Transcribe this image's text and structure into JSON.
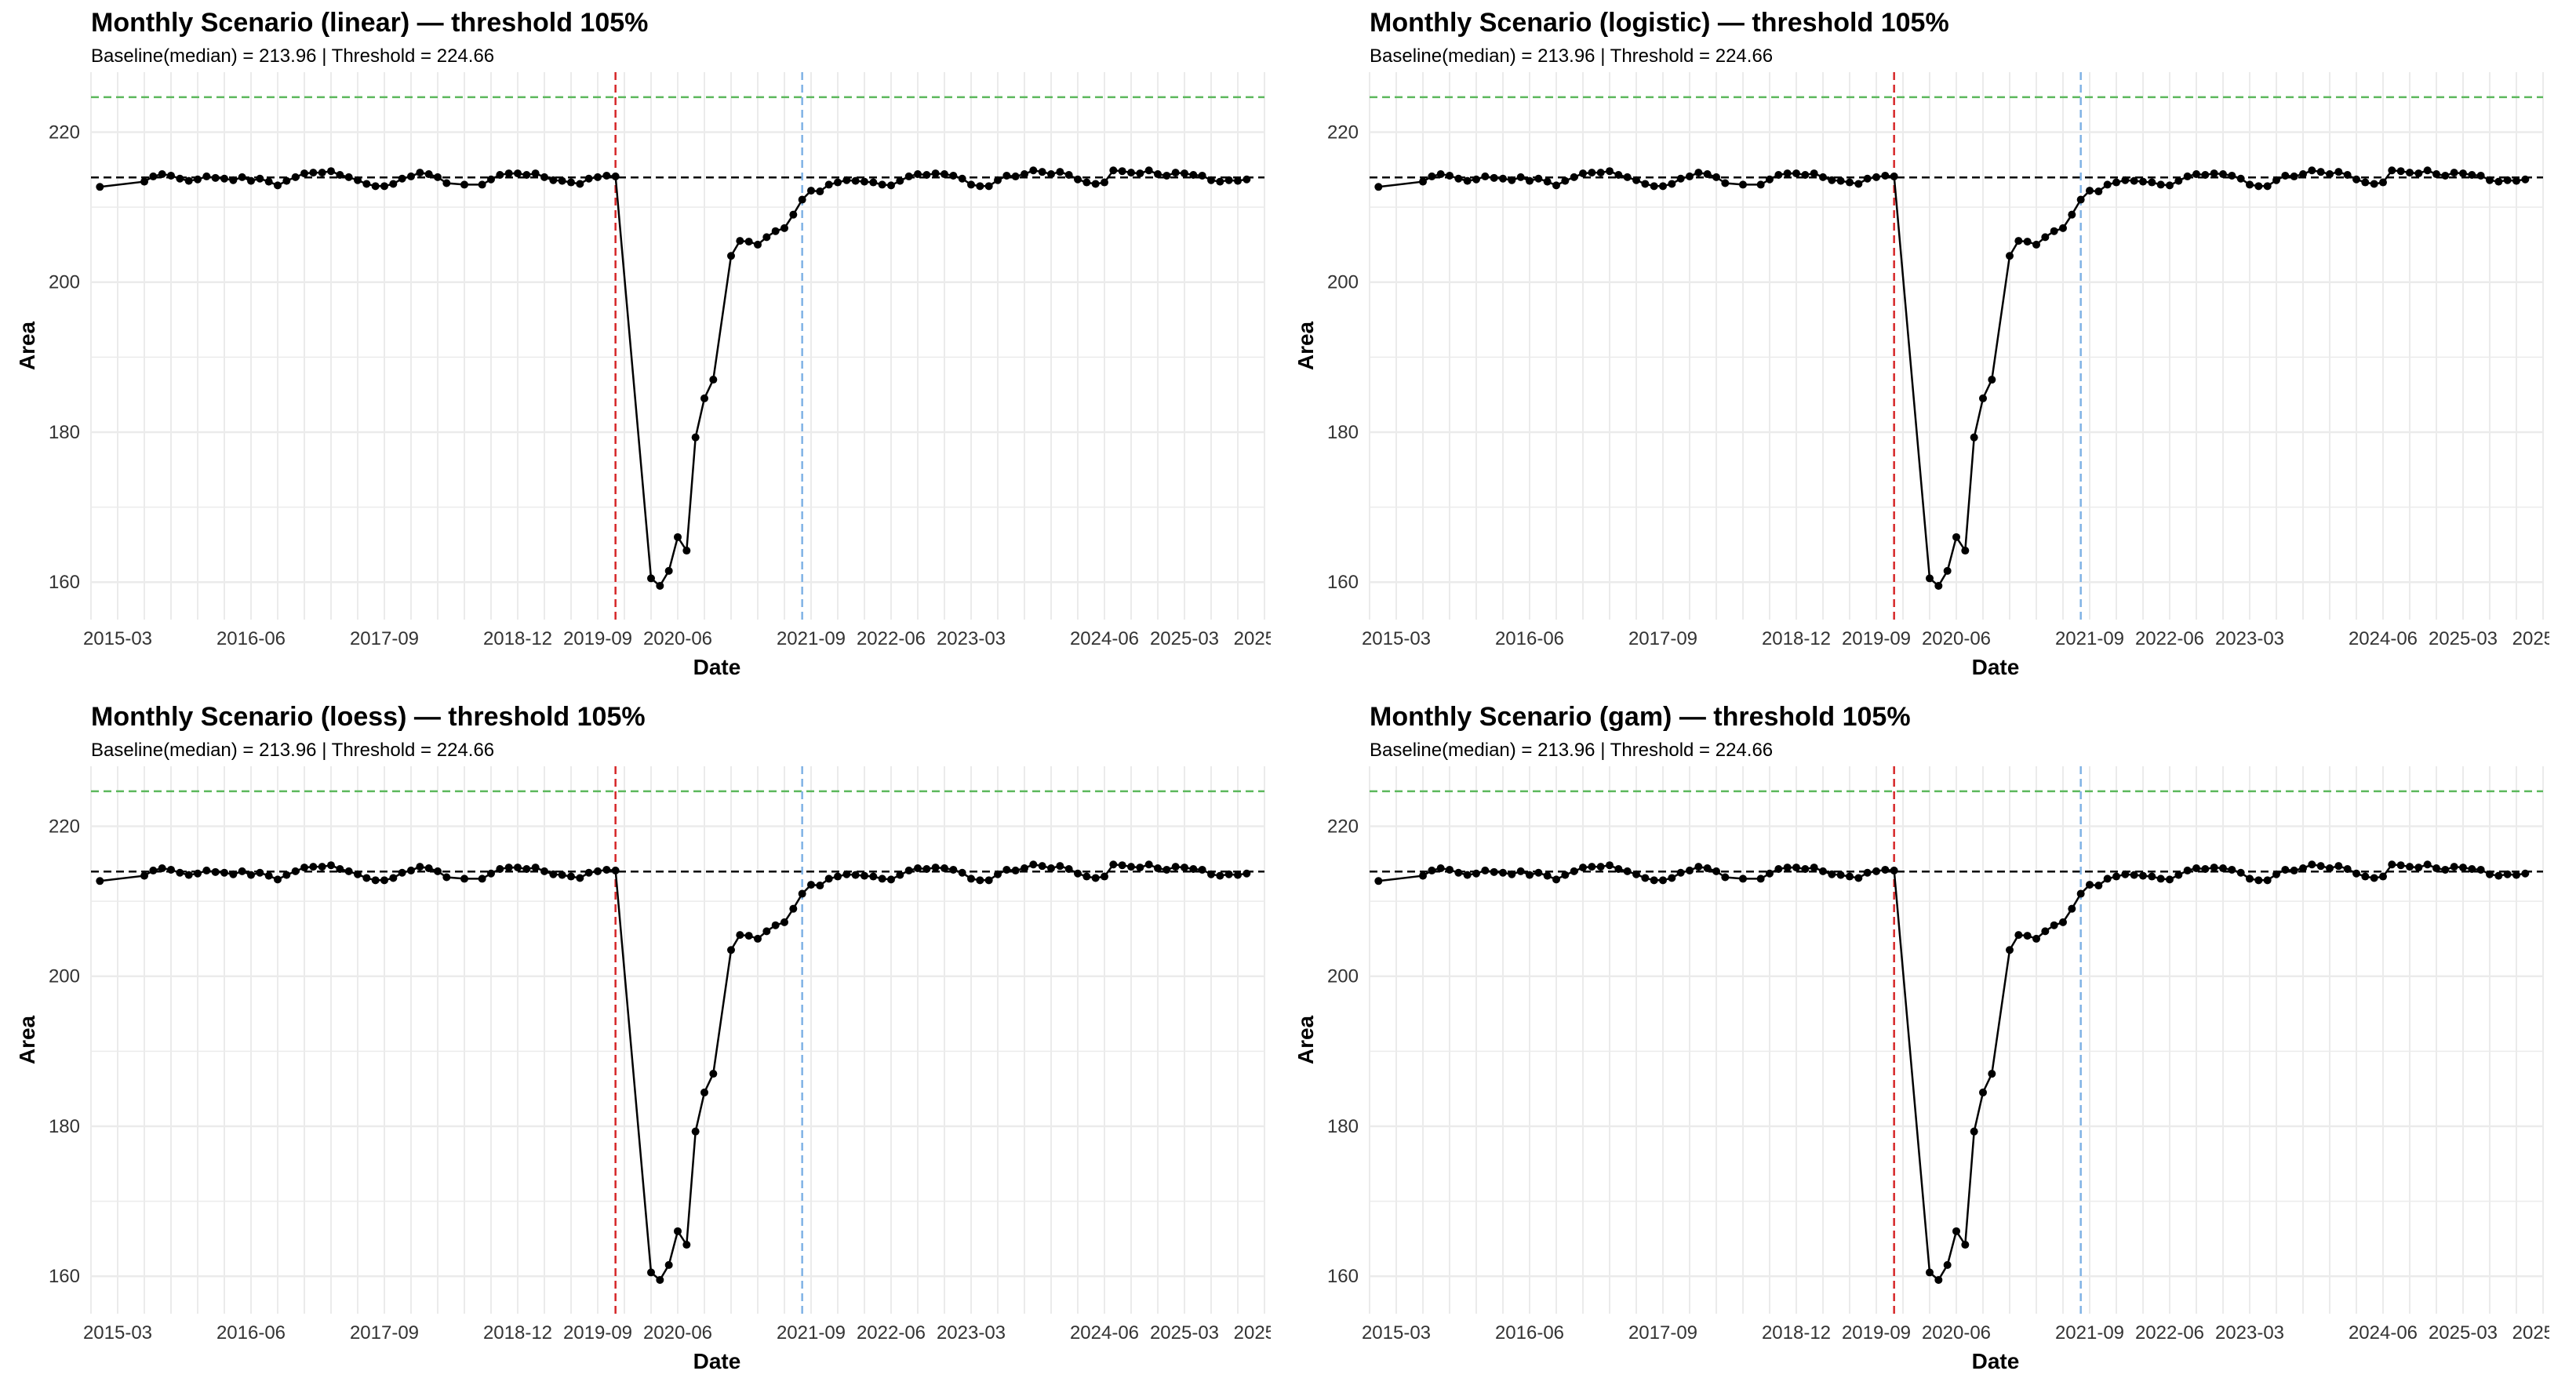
{
  "colors": {
    "baseline_line": "#000000",
    "threshold_line": "#5cb85c",
    "event_line": "#d62728",
    "recovery_line": "#7fb2e5",
    "series": "#000000",
    "grid": "#ebebeb"
  },
  "chart_data": [
    {
      "type": "line",
      "title": "Monthly Scenario (linear) — threshold 105%",
      "subtitle": "Baseline(median) = 213.96 | Threshold = 224.66",
      "xlabel": "Date",
      "ylabel": "Area",
      "ylim": [
        155,
        228
      ],
      "y_ticks": [
        160,
        180,
        200,
        220
      ],
      "x_tick_labels": [
        "2015-03",
        "2016-06",
        "2017-09",
        "2018-12",
        "2019-09",
        "2020-06",
        "2021-09",
        "2022-06",
        "2023-03",
        "2024-06",
        "2025-03",
        "2025-"
      ],
      "baseline": 213.96,
      "threshold": 224.66,
      "event_date": "2019-11",
      "recovery_date": "2021-08",
      "grid": true
    },
    {
      "type": "line",
      "title": "Monthly Scenario (logistic) — threshold 105%",
      "subtitle": "Baseline(median) = 213.96 | Threshold = 224.66",
      "xlabel": "Date",
      "ylabel": "Area",
      "ylim": [
        155,
        228
      ],
      "y_ticks": [
        160,
        180,
        200,
        220
      ],
      "x_tick_labels": [
        "2015-03",
        "2016-06",
        "2017-09",
        "2018-12",
        "2019-09",
        "2020-06",
        "2021-09",
        "2022-06",
        "2023-03",
        "2024-06",
        "2025-03",
        "2025-"
      ],
      "baseline": 213.96,
      "threshold": 224.66,
      "event_date": "2019-11",
      "recovery_date": "2021-08",
      "grid": true
    },
    {
      "type": "line",
      "title": "Monthly Scenario (loess) — threshold 105%",
      "subtitle": "Baseline(median) = 213.96 | Threshold = 224.66",
      "xlabel": "Date",
      "ylabel": "Area",
      "ylim": [
        155,
        228
      ],
      "y_ticks": [
        160,
        180,
        200,
        220
      ],
      "x_tick_labels": [
        "2015-03",
        "2016-06",
        "2017-09",
        "2018-12",
        "2019-09",
        "2020-06",
        "2021-09",
        "2022-06",
        "2023-03",
        "2024-06",
        "2025-03",
        "2025-"
      ],
      "baseline": 213.96,
      "threshold": 224.66,
      "event_date": "2019-11",
      "recovery_date": "2021-08",
      "grid": true
    },
    {
      "type": "line",
      "title": "Monthly Scenario (gam) — threshold 105%",
      "subtitle": "Baseline(median) = 213.96 | Threshold = 224.66",
      "xlabel": "Date",
      "ylabel": "Area",
      "ylim": [
        155,
        228
      ],
      "y_ticks": [
        160,
        180,
        200,
        220
      ],
      "x_tick_labels": [
        "2015-03",
        "2016-06",
        "2017-09",
        "2018-12",
        "2019-09",
        "2020-06",
        "2021-09",
        "2022-06",
        "2023-03",
        "2024-06",
        "2025-03",
        "2025-"
      ],
      "baseline": 213.96,
      "threshold": 224.66,
      "event_date": "2019-11",
      "recovery_date": "2021-08",
      "grid": true
    }
  ],
  "series_points": [
    {
      "x": "2015-01",
      "y": 212.7
    },
    {
      "x": "2015-06",
      "y": 213.4
    },
    {
      "x": "2015-07",
      "y": 214.1
    },
    {
      "x": "2015-08",
      "y": 214.4
    },
    {
      "x": "2015-09",
      "y": 214.2
    },
    {
      "x": "2015-10",
      "y": 213.8
    },
    {
      "x": "2015-11",
      "y": 213.5
    },
    {
      "x": "2015-12",
      "y": 213.7
    },
    {
      "x": "2016-01",
      "y": 214.1
    },
    {
      "x": "2016-02",
      "y": 213.9
    },
    {
      "x": "2016-03",
      "y": 213.8
    },
    {
      "x": "2016-04",
      "y": 213.6
    },
    {
      "x": "2016-05",
      "y": 214.0
    },
    {
      "x": "2016-06",
      "y": 213.5
    },
    {
      "x": "2016-07",
      "y": 213.8
    },
    {
      "x": "2016-08",
      "y": 213.4
    },
    {
      "x": "2016-09",
      "y": 212.9
    },
    {
      "x": "2016-10",
      "y": 213.5
    },
    {
      "x": "2016-11",
      "y": 214.0
    },
    {
      "x": "2016-12",
      "y": 214.5
    },
    {
      "x": "2017-01",
      "y": 214.6
    },
    {
      "x": "2017-02",
      "y": 214.6
    },
    {
      "x": "2017-03",
      "y": 214.8
    },
    {
      "x": "2017-04",
      "y": 214.3
    },
    {
      "x": "2017-05",
      "y": 214.0
    },
    {
      "x": "2017-06",
      "y": 213.6
    },
    {
      "x": "2017-07",
      "y": 213.1
    },
    {
      "x": "2017-08",
      "y": 212.8
    },
    {
      "x": "2017-09",
      "y": 212.8
    },
    {
      "x": "2017-10",
      "y": 213.1
    },
    {
      "x": "2017-11",
      "y": 213.8
    },
    {
      "x": "2017-12",
      "y": 214.1
    },
    {
      "x": "2018-01",
      "y": 214.6
    },
    {
      "x": "2018-02",
      "y": 214.4
    },
    {
      "x": "2018-03",
      "y": 214.0
    },
    {
      "x": "2018-04",
      "y": 213.2
    },
    {
      "x": "2018-06",
      "y": 213.0
    },
    {
      "x": "2018-08",
      "y": 213.0
    },
    {
      "x": "2018-09",
      "y": 213.7
    },
    {
      "x": "2018-10",
      "y": 214.3
    },
    {
      "x": "2018-11",
      "y": 214.5
    },
    {
      "x": "2018-12",
      "y": 214.5
    },
    {
      "x": "2019-01",
      "y": 214.3
    },
    {
      "x": "2019-02",
      "y": 214.5
    },
    {
      "x": "2019-03",
      "y": 214.0
    },
    {
      "x": "2019-04",
      "y": 213.6
    },
    {
      "x": "2019-05",
      "y": 213.5
    },
    {
      "x": "2019-06",
      "y": 213.3
    },
    {
      "x": "2019-07",
      "y": 213.1
    },
    {
      "x": "2019-08",
      "y": 213.8
    },
    {
      "x": "2019-09",
      "y": 214.0
    },
    {
      "x": "2019-10",
      "y": 214.2
    },
    {
      "x": "2019-11",
      "y": 214.1
    },
    {
      "x": "2020-03",
      "y": 160.5
    },
    {
      "x": "2020-04",
      "y": 159.5
    },
    {
      "x": "2020-05",
      "y": 161.5
    },
    {
      "x": "2020-06",
      "y": 166.0
    },
    {
      "x": "2020-07",
      "y": 164.2
    },
    {
      "x": "2020-08",
      "y": 179.3
    },
    {
      "x": "2020-09",
      "y": 184.5
    },
    {
      "x": "2020-10",
      "y": 187.0
    },
    {
      "x": "2020-12",
      "y": 203.5
    },
    {
      "x": "2021-01",
      "y": 205.5
    },
    {
      "x": "2021-02",
      "y": 205.4
    },
    {
      "x": "2021-03",
      "y": 205.0
    },
    {
      "x": "2021-04",
      "y": 206.0
    },
    {
      "x": "2021-05",
      "y": 206.8
    },
    {
      "x": "2021-06",
      "y": 207.2
    },
    {
      "x": "2021-07",
      "y": 209.0
    },
    {
      "x": "2021-08",
      "y": 211.0
    },
    {
      "x": "2021-09",
      "y": 212.2
    },
    {
      "x": "2021-10",
      "y": 212.1
    },
    {
      "x": "2021-11",
      "y": 213.0
    },
    {
      "x": "2021-12",
      "y": 213.3
    },
    {
      "x": "2022-01",
      "y": 213.6
    },
    {
      "x": "2022-02",
      "y": 213.5
    },
    {
      "x": "2022-03",
      "y": 213.4
    },
    {
      "x": "2022-04",
      "y": 213.3
    },
    {
      "x": "2022-05",
      "y": 213.0
    },
    {
      "x": "2022-06",
      "y": 212.9
    },
    {
      "x": "2022-07",
      "y": 213.5
    },
    {
      "x": "2022-08",
      "y": 214.1
    },
    {
      "x": "2022-09",
      "y": 214.4
    },
    {
      "x": "2022-10",
      "y": 214.3
    },
    {
      "x": "2022-11",
      "y": 214.5
    },
    {
      "x": "2022-12",
      "y": 214.4
    },
    {
      "x": "2023-01",
      "y": 214.2
    },
    {
      "x": "2023-02",
      "y": 213.8
    },
    {
      "x": "2023-03",
      "y": 213.0
    },
    {
      "x": "2023-04",
      "y": 212.8
    },
    {
      "x": "2023-05",
      "y": 212.8
    },
    {
      "x": "2023-06",
      "y": 213.6
    },
    {
      "x": "2023-07",
      "y": 214.2
    },
    {
      "x": "2023-08",
      "y": 214.1
    },
    {
      "x": "2023-09",
      "y": 214.4
    },
    {
      "x": "2023-10",
      "y": 214.9
    },
    {
      "x": "2023-11",
      "y": 214.7
    },
    {
      "x": "2023-12",
      "y": 214.4
    },
    {
      "x": "2024-01",
      "y": 214.7
    },
    {
      "x": "2024-02",
      "y": 214.3
    },
    {
      "x": "2024-03",
      "y": 213.7
    },
    {
      "x": "2024-04",
      "y": 213.3
    },
    {
      "x": "2024-05",
      "y": 213.1
    },
    {
      "x": "2024-06",
      "y": 213.3
    },
    {
      "x": "2024-07",
      "y": 214.9
    },
    {
      "x": "2024-08",
      "y": 214.8
    },
    {
      "x": "2024-09",
      "y": 214.6
    },
    {
      "x": "2024-10",
      "y": 214.5
    },
    {
      "x": "2024-11",
      "y": 214.9
    },
    {
      "x": "2024-12",
      "y": 214.4
    },
    {
      "x": "2025-01",
      "y": 214.2
    },
    {
      "x": "2025-02",
      "y": 214.6
    },
    {
      "x": "2025-03",
      "y": 214.5
    },
    {
      "x": "2025-04",
      "y": 214.3
    },
    {
      "x": "2025-05",
      "y": 214.2
    },
    {
      "x": "2025-06",
      "y": 213.6
    },
    {
      "x": "2025-07",
      "y": 213.4
    },
    {
      "x": "2025-08",
      "y": 213.6
    },
    {
      "x": "2025-09",
      "y": 213.5
    },
    {
      "x": "2025-10",
      "y": 213.7
    }
  ]
}
